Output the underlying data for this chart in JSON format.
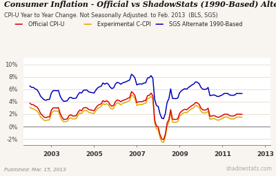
{
  "title": "Consumer Inflation - Official vs ShadowStats (1990-Based) Alternate",
  "subtitle": "CPI-U Year to Year Change. Not Seasonally Adjusted. to Feb. 2013  (BLS, SGS)",
  "published": "Published: Mar. 15, 2013",
  "watermark": "shadowstats.com",
  "legend": [
    "Official CPI-U",
    "Experimental C-CPI",
    "SGS Alternate 1990-Based"
  ],
  "line_colors": [
    "#dd0000",
    "#ddaa00",
    "#0000bb"
  ],
  "ylim": [
    -3.0,
    11.0
  ],
  "yticks": [
    -2,
    0,
    2,
    4,
    6,
    8,
    10
  ],
  "ytick_labels": [
    "-2%",
    "0%",
    "2%",
    "4%",
    "6%",
    "8%",
    "10%"
  ],
  "xlim_start": 2001.7,
  "xlim_end": 2013.25,
  "xticks": [
    2003,
    2005,
    2007,
    2009,
    2011,
    2013
  ],
  "bg_color": "#f8f4ef",
  "plot_bg": "#ffffff",
  "grid_color": "#e0d0c0",
  "zero_line_color": "#999999",
  "official_cpi": [
    3.73,
    3.53,
    3.5,
    3.27,
    3.15,
    2.72,
    2.11,
    1.8,
    1.51,
    1.43,
    1.55,
    1.55,
    2.6,
    2.98,
    3.02,
    2.98,
    3.04,
    2.11,
    1.53,
    1.13,
    1.16,
    1.24,
    1.77,
    1.88,
    1.69,
    1.69,
    1.74,
    2.29,
    2.65,
    2.54,
    2.97,
    3.05,
    3.01,
    2.74,
    2.66,
    2.62,
    2.54,
    3.01,
    3.36,
    3.53,
    3.64,
    4.17,
    3.98,
    4.15,
    3.99,
    3.5,
    3.26,
    3.39,
    4.0,
    4.28,
    4.18,
    3.98,
    4.18,
    4.28,
    4.38,
    4.54,
    4.65,
    5.6,
    5.37,
    4.94,
    3.85,
    3.98,
    4.0,
    3.98,
    4.15,
    4.18,
    4.97,
    5.02,
    5.37,
    4.94,
    1.07,
    0.09,
    -0.09,
    -1.28,
    -1.99,
    -2.1,
    -1.24,
    0.54,
    1.14,
    2.72,
    1.18,
    1.16,
    1.14,
    1.24,
    2.11,
    2.42,
    2.65,
    2.77,
    2.68,
    2.97,
    3.16,
    3.39,
    3.54,
    3.87,
    3.79,
    3.56,
    2.96,
    2.68,
    2.65,
    2.68,
    2.96,
    1.66,
    1.69,
    1.74,
    1.69,
    1.53,
    1.48,
    1.66,
    1.74,
    1.98,
    1.98,
    1.98,
    1.74,
    1.69,
    1.69,
    1.74,
    1.98,
    1.98,
    1.98,
    1.96
  ],
  "exp_cpi": [
    3.1,
    2.9,
    2.85,
    2.65,
    2.5,
    2.1,
    1.55,
    1.25,
    1.0,
    0.95,
    1.05,
    1.05,
    2.05,
    2.45,
    2.5,
    2.45,
    2.5,
    1.6,
    1.05,
    0.75,
    0.78,
    0.85,
    1.3,
    1.4,
    1.22,
    1.22,
    1.28,
    1.82,
    2.18,
    2.08,
    2.5,
    2.58,
    2.55,
    2.28,
    2.2,
    2.15,
    2.08,
    2.55,
    2.9,
    3.08,
    3.18,
    3.7,
    3.5,
    3.68,
    3.52,
    3.05,
    2.8,
    2.92,
    3.52,
    3.8,
    3.7,
    3.5,
    3.7,
    3.8,
    3.9,
    4.05,
    4.18,
    5.1,
    4.88,
    4.45,
    3.38,
    3.52,
    3.55,
    3.52,
    3.7,
    3.72,
    4.5,
    4.55,
    4.88,
    4.45,
    0.62,
    -0.35,
    -0.52,
    -1.75,
    -2.45,
    -2.55,
    -1.7,
    0.08,
    0.68,
    2.25,
    0.72,
    0.7,
    0.68,
    0.78,
    1.62,
    1.92,
    2.15,
    2.28,
    2.2,
    2.48,
    2.68,
    2.9,
    3.05,
    3.38,
    3.3,
    3.08,
    2.48,
    2.2,
    2.18,
    2.2,
    2.48,
    1.18,
    1.22,
    1.28,
    1.22,
    1.05,
    1.02,
    1.18,
    1.28,
    1.52,
    1.52,
    1.52,
    1.28,
    1.22,
    1.22,
    1.28,
    1.52,
    1.52,
    1.52,
    1.5
  ],
  "sgs_1990": [
    6.5,
    6.3,
    6.28,
    6.05,
    5.92,
    5.48,
    4.88,
    4.58,
    4.3,
    4.22,
    4.35,
    4.35,
    5.35,
    5.75,
    5.8,
    5.75,
    5.8,
    4.88,
    4.35,
    4.05,
    4.08,
    4.15,
    4.6,
    4.7,
    4.52,
    4.52,
    4.58,
    5.12,
    5.48,
    5.38,
    5.8,
    5.88,
    5.85,
    5.58,
    5.5,
    5.45,
    5.38,
    5.85,
    6.2,
    6.38,
    6.48,
    7.0,
    6.8,
    6.98,
    6.82,
    6.35,
    6.1,
    6.22,
    6.82,
    7.1,
    7.0,
    6.8,
    7.0,
    7.1,
    7.2,
    7.35,
    7.48,
    8.4,
    8.18,
    7.75,
    6.68,
    6.82,
    6.85,
    6.82,
    7.0,
    7.02,
    7.8,
    7.85,
    8.18,
    7.75,
    4.38,
    3.4,
    3.22,
    2.05,
    1.35,
    1.25,
    2.08,
    3.88,
    4.48,
    6.05,
    4.52,
    4.5,
    4.48,
    4.58,
    5.42,
    5.72,
    5.95,
    6.08,
    6.0,
    6.28,
    6.48,
    6.7,
    6.85,
    7.18,
    7.1,
    6.88,
    6.28,
    6.0,
    5.98,
    6.0,
    6.28,
    4.98,
    5.02,
    5.08,
    5.02,
    4.85,
    4.82,
    4.98,
    5.08,
    5.32,
    5.32,
    5.32,
    5.08,
    5.02,
    5.02,
    5.08,
    5.32,
    5.32,
    5.32,
    5.3
  ],
  "n_points": 120,
  "date_start": 2002.0
}
